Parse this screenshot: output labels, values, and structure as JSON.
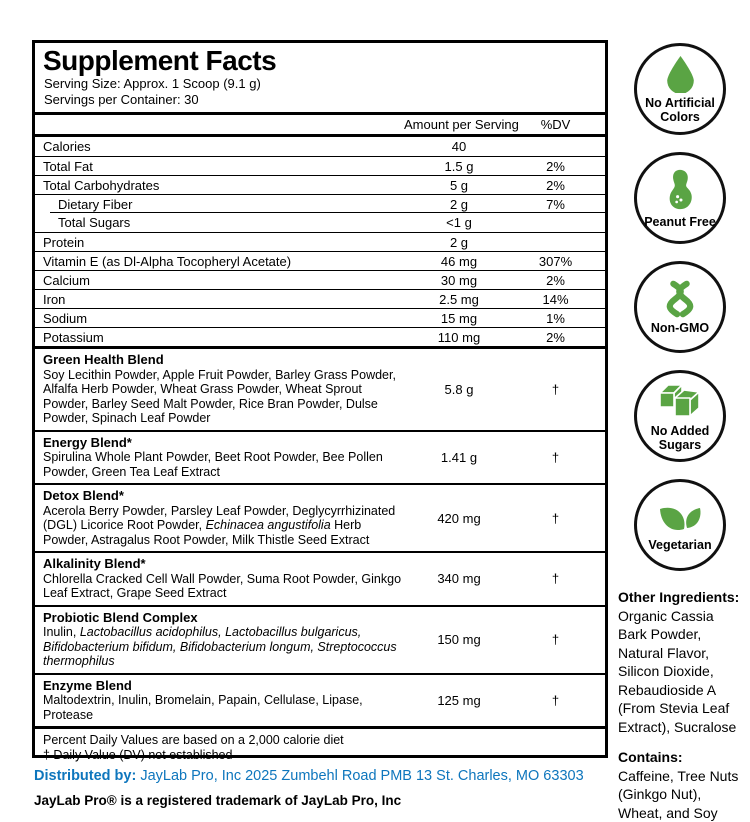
{
  "colors": {
    "icon_green": "#5AA444",
    "link_blue": "#0E76BD",
    "border_black": "#000000"
  },
  "panel": {
    "title": "Supplement Facts",
    "serving_size": "Serving Size: Approx. 1 Scoop (9.1 g)",
    "servings_per_container": "Servings per Container: 30",
    "columns": {
      "amount": "Amount per Serving",
      "dv": "%DV"
    },
    "nutrients": [
      {
        "name": "Calories",
        "amount": "40",
        "dv": ""
      },
      {
        "name": "Total Fat",
        "amount": "1.5 g",
        "dv": "2%"
      },
      {
        "name": "Total Carbohydrates",
        "amount": "5 g",
        "dv": "2%"
      },
      {
        "name": "Dietary Fiber",
        "amount": "2 g",
        "dv": "7%",
        "indent": true
      },
      {
        "name": "Total Sugars",
        "amount": "<1 g",
        "dv": "",
        "indent": true,
        "indent_rule": true
      },
      {
        "name": "Protein",
        "amount": "2 g",
        "dv": ""
      },
      {
        "name": "Vitamin E (as Dl-Alpha Tocopheryl Acetate)",
        "amount": "46 mg",
        "dv": "307%"
      },
      {
        "name": "Calcium",
        "amount": "30 mg",
        "dv": "2%"
      },
      {
        "name": "Iron",
        "amount": "2.5 mg",
        "dv": "14%"
      },
      {
        "name": "Sodium",
        "amount": "15 mg",
        "dv": "1%"
      },
      {
        "name": "Potassium",
        "amount": "110 mg",
        "dv": "2%"
      }
    ],
    "blends": [
      {
        "name": "Green Health Blend",
        "amount": "5.8 g",
        "dv": "†",
        "ingredients": [
          {
            "text": "Soy Lecithin Powder, Apple Fruit Powder, Barley Grass Powder, Alfalfa Herb Powder, Wheat Grass Powder, Wheat Sprout Powder, Barley Seed Malt Powder, Rice Bran Powder, Dulse Powder, Spinach Leaf Powder",
            "italic": false
          }
        ]
      },
      {
        "name": "Energy Blend*",
        "amount": "1.41 g",
        "dv": "†",
        "ingredients": [
          {
            "text": "Spirulina Whole Plant Powder, Beet Root Powder, Bee Pollen Powder, Green Tea Leaf Extract",
            "italic": false
          }
        ]
      },
      {
        "name": "Detox Blend*",
        "amount": "420 mg",
        "dv": "†",
        "ingredients": [
          {
            "text": "Acerola Berry Powder, Parsley Leaf Powder, Deglycyrrhizinated (DGL) Licorice Root Powder, ",
            "italic": false
          },
          {
            "text": "Echinacea angustifolia",
            "italic": true
          },
          {
            "text": " Herb Powder, Astragalus Root Powder, Milk Thistle Seed Extract",
            "italic": false
          }
        ]
      },
      {
        "name": "Alkalinity Blend*",
        "amount": "340 mg",
        "dv": "†",
        "ingredients": [
          {
            "text": "Chlorella Cracked Cell Wall Powder, Suma Root Powder, Ginkgo Leaf Extract, Grape Seed Extract",
            "italic": false
          }
        ]
      },
      {
        "name": "Probiotic Blend Complex",
        "amount": "150 mg",
        "dv": "†",
        "ingredients": [
          {
            "text": "Inulin, ",
            "italic": false
          },
          {
            "text": "Lactobacillus acidophilus, Lactobacillus bulgaricus, Bifidobacterium bifidum, Bifidobacterium longum, Streptococcus thermophilus",
            "italic": true
          }
        ]
      },
      {
        "name": "Enzyme Blend",
        "amount": "125 mg",
        "dv": "†",
        "ingredients": [
          {
            "text": "Maltodextrin, Inulin, Bromelain, Papain, Cellulase, Lipase, Protease",
            "italic": false
          }
        ]
      }
    ],
    "footnotes": [
      "Percent Daily Values are based on a 2,000 calorie diet",
      "† Daily Value (DV) not established"
    ]
  },
  "badges": [
    {
      "icon": "droplet-icon",
      "label": "No Artificial Colors"
    },
    {
      "icon": "peanut-icon",
      "label": "Peanut Free"
    },
    {
      "icon": "dna-icon",
      "label": "Non-GMO"
    },
    {
      "icon": "sugar-cubes-icon",
      "label": "No Added Sugars"
    },
    {
      "icon": "leaf-icon",
      "label": "Vegetarian"
    }
  ],
  "side_info": {
    "other_ingredients_heading": "Other Ingredients:",
    "other_ingredients": "Organic Cassia Bark Powder, Natural Flavor, Silicon Dioxide, Rebaudioside A (From Stevia Leaf Extract), Sucralose",
    "contains_heading": "Contains:",
    "contains": "Caffeine, Tree Nuts (Ginkgo Nut), Wheat, and Soy"
  },
  "footer": {
    "distributed_by_label": "Distributed by:",
    "distributed_by_text": " JayLab Pro, Inc 2025 Zumbehl Road PMB 13 St. Charles, MO 63303",
    "trademark": "JayLab Pro® is a registered trademark of JayLab Pro, Inc"
  }
}
